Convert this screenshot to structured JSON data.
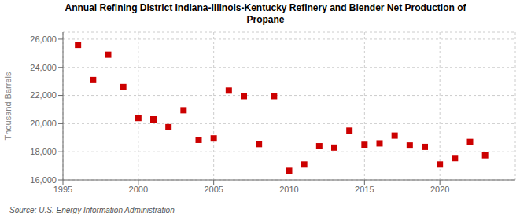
{
  "chart_data": {
    "type": "scatter",
    "title": "Annual Refining District Indiana-Illinois-Kentucky Refinery and Blender Net Production of",
    "subtitle": "Propane",
    "y_label": "Thousand Barrels",
    "annotations": [
      "Source: U.S. Energy Information Administration"
    ],
    "x": [
      1996,
      1997,
      1998,
      1999,
      2000,
      2001,
      2002,
      2003,
      2004,
      2005,
      2006,
      2007,
      2008,
      2009,
      2010,
      2011,
      2012,
      2013,
      2014,
      2015,
      2016,
      2017,
      2018,
      2019,
      2020,
      2021,
      2022,
      2023
    ],
    "values": [
      25600,
      23100,
      24900,
      22600,
      20400,
      20300,
      19750,
      20950,
      18850,
      18950,
      22350,
      21950,
      18550,
      21950,
      16650,
      17100,
      18400,
      18300,
      19500,
      18500,
      18600,
      19150,
      18450,
      18350,
      17100,
      17550,
      18700,
      17750
    ],
    "color": "#cc0000",
    "marker": "square",
    "xlim": [
      1995,
      2025
    ],
    "ylim": [
      16000,
      26500
    ],
    "xticks": [
      1995,
      2000,
      2005,
      2010,
      2015,
      2020
    ],
    "yticks": [
      {
        "value": 16000,
        "label": "16,000"
      },
      {
        "value": 18000,
        "label": "18,000"
      },
      {
        "value": 20000,
        "label": "20,000"
      },
      {
        "value": 22000,
        "label": "22,000"
      },
      {
        "value": 24000,
        "label": "24,000"
      },
      {
        "value": 26000,
        "label": "26,000"
      }
    ],
    "grid": true
  }
}
